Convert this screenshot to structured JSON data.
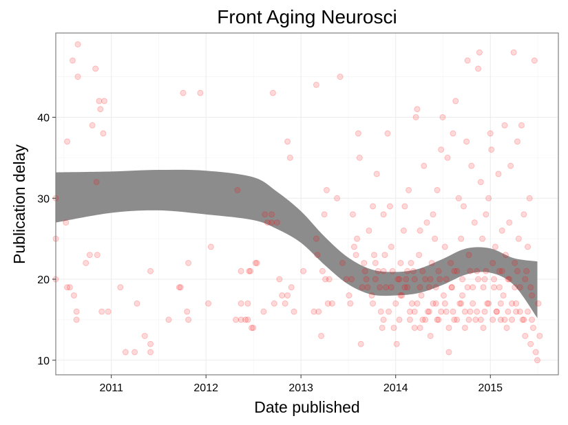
{
  "chart_data": {
    "type": "scatter",
    "title": "Front Aging Neurosci",
    "xlabel": "Date published",
    "ylabel": "Publication delay",
    "x_scale": "date",
    "xlim": [
      "2010-06-01",
      "2015-09-20"
    ],
    "ylim": [
      8.2,
      50.4
    ],
    "x_ticks": [
      {
        "label": "2011",
        "value": "2011-01-01"
      },
      {
        "label": "2012",
        "value": "2012-01-01"
      },
      {
        "label": "2013",
        "value": "2013-01-01"
      },
      {
        "label": "2014",
        "value": "2014-01-01"
      },
      {
        "label": "2015",
        "value": "2015-01-01"
      }
    ],
    "y_ticks": [
      10,
      20,
      30,
      40
    ],
    "grid": true,
    "point_color": "#ff0000",
    "point_opacity": 0.15,
    "band_color": "#8c8c8c",
    "points": [
      [
        "2010-06-01",
        30
      ],
      [
        "2010-06-01",
        25
      ],
      [
        "2010-06-01",
        20
      ],
      [
        "2010-07-10",
        27
      ],
      [
        "2010-07-15",
        37
      ],
      [
        "2010-07-15",
        19
      ],
      [
        "2010-07-25",
        19
      ],
      [
        "2010-08-05",
        47
      ],
      [
        "2010-08-10",
        18
      ],
      [
        "2010-08-20",
        16
      ],
      [
        "2010-08-20",
        15
      ],
      [
        "2010-08-25",
        49
      ],
      [
        "2010-08-25",
        45
      ],
      [
        "2010-09-25",
        22
      ],
      [
        "2010-10-10",
        23
      ],
      [
        "2010-10-20",
        39
      ],
      [
        "2010-11-01",
        46
      ],
      [
        "2010-11-05",
        32
      ],
      [
        "2010-11-08",
        23
      ],
      [
        "2010-11-15",
        42
      ],
      [
        "2010-11-20",
        41
      ],
      [
        "2010-11-25",
        16
      ],
      [
        "2010-12-01",
        38
      ],
      [
        "2010-12-05",
        42
      ],
      [
        "2010-12-20",
        16
      ],
      [
        "2011-02-05",
        19
      ],
      [
        "2011-02-25",
        11
      ],
      [
        "2011-04-01",
        11
      ],
      [
        "2011-04-10",
        17
      ],
      [
        "2011-05-10",
        13
      ],
      [
        "2011-06-01",
        11
      ],
      [
        "2011-06-01",
        12
      ],
      [
        "2011-06-01",
        21
      ],
      [
        "2011-08-10",
        15
      ],
      [
        "2011-09-20",
        19
      ],
      [
        "2011-09-25",
        19
      ],
      [
        "2011-10-05",
        43
      ],
      [
        "2011-10-20",
        16
      ],
      [
        "2011-10-25",
        22
      ],
      [
        "2011-10-25",
        15
      ],
      [
        "2011-12-10",
        43
      ],
      [
        "2012-01-10",
        17
      ],
      [
        "2012-01-20",
        24
      ],
      [
        "2012-04-25",
        15
      ],
      [
        "2012-05-01",
        31
      ],
      [
        "2012-05-15",
        15
      ],
      [
        "2012-05-15",
        17
      ],
      [
        "2012-05-15",
        21
      ],
      [
        "2012-06-01",
        15
      ],
      [
        "2012-06-10",
        15
      ],
      [
        "2012-06-10",
        17
      ],
      [
        "2012-06-15",
        21
      ],
      [
        "2012-06-20",
        21
      ],
      [
        "2012-06-25",
        14
      ],
      [
        "2012-07-01",
        14
      ],
      [
        "2012-07-10",
        22
      ],
      [
        "2012-07-15",
        22
      ],
      [
        "2012-08-10",
        16
      ],
      [
        "2012-08-15",
        28
      ],
      [
        "2012-08-25",
        27
      ],
      [
        "2012-09-10",
        28
      ],
      [
        "2012-09-10",
        27
      ],
      [
        "2012-09-15",
        43
      ],
      [
        "2012-09-20",
        17
      ],
      [
        "2012-10-01",
        27
      ],
      [
        "2012-10-10",
        20
      ],
      [
        "2012-10-20",
        18
      ],
      [
        "2012-11-01",
        17
      ],
      [
        "2012-11-10",
        18
      ],
      [
        "2012-11-10",
        37
      ],
      [
        "2012-11-20",
        35
      ],
      [
        "2012-11-25",
        19
      ],
      [
        "2012-12-05",
        16
      ],
      [
        "2013-01-10",
        21
      ],
      [
        "2013-02-20",
        16
      ],
      [
        "2013-03-01",
        44
      ],
      [
        "2013-03-01",
        25
      ],
      [
        "2013-03-05",
        23
      ],
      [
        "2013-03-10",
        16
      ],
      [
        "2013-03-20",
        13
      ],
      [
        "2013-03-25",
        21
      ],
      [
        "2013-04-01",
        28
      ],
      [
        "2013-04-05",
        20
      ],
      [
        "2013-04-10",
        31
      ],
      [
        "2013-04-15",
        17
      ],
      [
        "2013-04-20",
        20
      ],
      [
        "2013-05-01",
        17
      ],
      [
        "2013-05-20",
        30
      ],
      [
        "2013-06-01",
        45
      ],
      [
        "2013-06-10",
        22
      ],
      [
        "2013-06-25",
        20
      ],
      [
        "2013-07-05",
        18
      ],
      [
        "2013-07-10",
        17
      ],
      [
        "2013-07-15",
        20
      ],
      [
        "2013-07-20",
        28
      ],
      [
        "2013-07-25",
        24
      ],
      [
        "2013-08-01",
        23
      ],
      [
        "2013-08-05",
        25
      ],
      [
        "2013-08-10",
        38
      ],
      [
        "2013-08-15",
        35
      ],
      [
        "2013-08-20",
        12
      ],
      [
        "2013-08-25",
        19
      ],
      [
        "2013-09-01",
        22
      ],
      [
        "2013-09-05",
        21
      ],
      [
        "2013-09-10",
        20
      ],
      [
        "2013-09-20",
        26
      ],
      [
        "2013-10-01",
        18
      ],
      [
        "2013-10-05",
        29
      ],
      [
        "2013-10-10",
        23
      ],
      [
        "2013-10-15",
        22
      ],
      [
        "2013-10-20",
        33
      ],
      [
        "2013-10-25",
        21
      ],
      [
        "2013-11-01",
        19
      ],
      [
        "2013-11-05",
        16
      ],
      [
        "2013-11-10",
        14
      ],
      [
        "2013-11-15",
        28
      ],
      [
        "2013-11-20",
        23
      ],
      [
        "2013-11-25",
        19
      ],
      [
        "2013-12-01",
        38
      ],
      [
        "2013-12-05",
        16
      ],
      [
        "2013-12-10",
        29
      ],
      [
        "2013-12-15",
        24
      ],
      [
        "2013-12-20",
        21
      ],
      [
        "2013-12-25",
        14
      ],
      [
        "2014-01-01",
        17
      ],
      [
        "2014-01-05",
        12
      ],
      [
        "2014-01-10",
        20
      ],
      [
        "2014-01-15",
        15
      ],
      [
        "2014-01-20",
        22
      ],
      [
        "2014-01-25",
        18
      ],
      [
        "2014-02-01",
        26
      ],
      [
        "2014-02-05",
        29
      ],
      [
        "2014-02-10",
        20
      ],
      [
        "2014-02-15",
        19
      ],
      [
        "2014-02-20",
        31
      ],
      [
        "2014-02-25",
        16
      ],
      [
        "2014-03-01",
        22
      ],
      [
        "2014-03-05",
        17
      ],
      [
        "2014-03-10",
        21
      ],
      [
        "2014-03-15",
        14
      ],
      [
        "2014-03-20",
        40
      ],
      [
        "2014-03-25",
        41
      ],
      [
        "2014-04-01",
        23
      ],
      [
        "2014-04-05",
        26
      ],
      [
        "2014-04-10",
        18
      ],
      [
        "2014-04-15",
        15
      ],
      [
        "2014-04-20",
        34
      ],
      [
        "2014-04-25",
        20
      ],
      [
        "2014-05-01",
        27
      ],
      [
        "2014-05-05",
        16
      ],
      [
        "2014-05-10",
        19
      ],
      [
        "2014-05-15",
        13
      ],
      [
        "2014-05-20",
        22
      ],
      [
        "2014-05-25",
        28
      ],
      [
        "2014-06-01",
        25
      ],
      [
        "2014-06-05",
        17
      ],
      [
        "2014-06-10",
        31
      ],
      [
        "2014-06-15",
        15
      ],
      [
        "2014-06-20",
        20
      ],
      [
        "2014-06-25",
        36
      ],
      [
        "2014-07-01",
        40
      ],
      [
        "2014-07-05",
        18
      ],
      [
        "2014-07-10",
        24
      ],
      [
        "2014-07-15",
        16
      ],
      [
        "2014-07-20",
        35
      ],
      [
        "2014-07-25",
        11
      ],
      [
        "2014-08-01",
        22
      ],
      [
        "2014-08-05",
        19
      ],
      [
        "2014-08-10",
        38
      ],
      [
        "2014-08-15",
        15
      ],
      [
        "2014-08-20",
        42
      ],
      [
        "2014-08-25",
        21
      ],
      [
        "2014-09-01",
        30
      ],
      [
        "2014-09-05",
        17
      ],
      [
        "2014-09-10",
        25
      ],
      [
        "2014-09-15",
        18
      ],
      [
        "2014-09-20",
        29
      ],
      [
        "2014-09-25",
        14
      ],
      [
        "2014-10-01",
        37
      ],
      [
        "2014-10-05",
        47
      ],
      [
        "2014-10-10",
        23
      ],
      [
        "2014-10-15",
        16
      ],
      [
        "2014-10-20",
        34
      ],
      [
        "2014-10-25",
        19
      ],
      [
        "2014-11-01",
        27
      ],
      [
        "2014-11-05",
        15
      ],
      [
        "2014-11-10",
        21
      ],
      [
        "2014-11-15",
        46
      ],
      [
        "2014-11-20",
        48
      ],
      [
        "2014-11-25",
        32
      ],
      [
        "2014-12-01",
        25
      ],
      [
        "2014-12-05",
        14
      ],
      [
        "2014-12-10",
        20
      ],
      [
        "2014-12-15",
        28
      ],
      [
        "2014-12-20",
        17
      ],
      [
        "2014-12-25",
        30
      ],
      [
        "2015-01-01",
        38
      ],
      [
        "2015-01-05",
        36
      ],
      [
        "2015-01-10",
        22
      ],
      [
        "2015-01-15",
        19
      ],
      [
        "2015-01-20",
        24
      ],
      [
        "2015-01-25",
        16
      ],
      [
        "2015-02-01",
        33
      ],
      [
        "2015-02-05",
        21
      ],
      [
        "2015-02-10",
        15
      ],
      [
        "2015-02-15",
        26
      ],
      [
        "2015-02-20",
        18
      ],
      [
        "2015-02-25",
        39
      ],
      [
        "2015-03-01",
        23
      ],
      [
        "2015-03-05",
        14
      ],
      [
        "2015-03-10",
        20
      ],
      [
        "2015-03-15",
        27
      ],
      [
        "2015-03-20",
        34
      ],
      [
        "2015-03-25",
        17
      ],
      [
        "2015-04-01",
        48
      ],
      [
        "2015-04-05",
        22
      ],
      [
        "2015-04-10",
        16
      ],
      [
        "2015-04-15",
        37
      ],
      [
        "2015-04-20",
        25
      ],
      [
        "2015-04-25",
        19
      ],
      [
        "2015-05-01",
        39
      ],
      [
        "2015-05-05",
        15
      ],
      [
        "2015-05-10",
        28
      ],
      [
        "2015-05-15",
        13
      ],
      [
        "2015-05-20",
        21
      ],
      [
        "2015-05-25",
        24
      ],
      [
        "2015-06-01",
        30
      ],
      [
        "2015-06-05",
        12
      ],
      [
        "2015-06-10",
        18
      ],
      [
        "2015-06-15",
        14
      ],
      [
        "2015-06-20",
        47
      ],
      [
        "2015-06-25",
        11
      ],
      [
        "2015-07-01",
        10
      ],
      [
        "2015-07-05",
        17
      ],
      [
        "2015-07-10",
        13
      ],
      [
        "2013-10-05",
        17
      ],
      [
        "2013-11-15",
        15
      ],
      [
        "2014-01-20",
        18
      ],
      [
        "2014-02-25",
        15
      ],
      [
        "2014-03-15",
        16
      ],
      [
        "2014-03-25",
        17
      ],
      [
        "2014-04-05",
        14
      ],
      [
        "2014-04-25",
        15
      ],
      [
        "2014-05-10",
        16
      ],
      [
        "2014-05-25",
        17
      ],
      [
        "2014-06-10",
        15
      ],
      [
        "2014-06-25",
        16
      ],
      [
        "2014-07-10",
        17
      ],
      [
        "2014-07-25",
        14
      ],
      [
        "2014-08-10",
        16
      ],
      [
        "2014-08-25",
        15
      ],
      [
        "2014-09-10",
        17
      ],
      [
        "2014-09-25",
        16
      ],
      [
        "2014-10-10",
        15
      ],
      [
        "2014-10-25",
        17
      ],
      [
        "2014-11-10",
        16
      ],
      [
        "2014-11-25",
        15
      ],
      [
        "2014-12-10",
        16
      ],
      [
        "2014-12-25",
        17
      ],
      [
        "2015-01-10",
        15
      ],
      [
        "2015-01-25",
        16
      ],
      [
        "2015-02-10",
        17
      ],
      [
        "2015-02-25",
        15
      ],
      [
        "2015-03-10",
        16
      ],
      [
        "2015-03-25",
        15
      ],
      [
        "2015-04-10",
        17
      ],
      [
        "2015-04-25",
        16
      ],
      [
        "2015-05-10",
        15
      ],
      [
        "2015-05-25",
        16
      ],
      [
        "2015-06-10",
        15
      ],
      [
        "2014-01-15",
        20
      ],
      [
        "2014-02-15",
        21
      ],
      [
        "2014-03-15",
        20
      ],
      [
        "2014-04-15",
        21
      ],
      [
        "2014-05-15",
        20
      ],
      [
        "2014-06-15",
        21
      ],
      [
        "2014-07-15",
        20
      ],
      [
        "2014-08-15",
        21
      ],
      [
        "2014-09-15",
        20
      ],
      [
        "2014-10-15",
        21
      ],
      [
        "2014-11-15",
        20
      ],
      [
        "2014-12-15",
        21
      ],
      [
        "2015-01-15",
        20
      ],
      [
        "2015-02-15",
        21
      ],
      [
        "2015-03-15",
        20
      ],
      [
        "2015-04-15",
        21
      ],
      [
        "2015-05-15",
        20
      ],
      [
        "2013-09-15",
        19
      ],
      [
        "2013-10-15",
        20
      ],
      [
        "2013-11-15",
        21
      ],
      [
        "2013-12-15",
        19
      ],
      [
        "2014-02-05",
        19
      ],
      [
        "2014-04-05",
        19
      ],
      [
        "2014-06-05",
        19
      ],
      [
        "2014-08-05",
        19
      ],
      [
        "2014-10-05",
        19
      ],
      [
        "2014-12-05",
        19
      ],
      [
        "2015-02-05",
        19
      ],
      [
        "2015-04-05",
        19
      ],
      [
        "2015-06-05",
        19
      ]
    ],
    "band": {
      "x": [
        "2010-06-01",
        "2011-01-01",
        "2011-07-01",
        "2012-01-01",
        "2012-07-01",
        "2012-10-01",
        "2013-01-01",
        "2013-04-01",
        "2013-07-01",
        "2013-10-01",
        "2014-01-01",
        "2014-04-01",
        "2014-07-01",
        "2014-10-01",
        "2015-01-01",
        "2015-04-01",
        "2015-07-01"
      ],
      "upper": [
        33.2,
        33.3,
        33.5,
        33.4,
        32.6,
        30.8,
        28.4,
        25.3,
        22.7,
        21.2,
        20.9,
        21.3,
        22.5,
        23.8,
        23.8,
        22.6,
        22.2
      ],
      "lower": [
        27.0,
        28.2,
        28.5,
        28.0,
        27.3,
        26.2,
        24.5,
        21.8,
        19.4,
        18.1,
        18.0,
        18.3,
        19.3,
        20.6,
        20.8,
        19.3,
        15.2
      ]
    }
  }
}
